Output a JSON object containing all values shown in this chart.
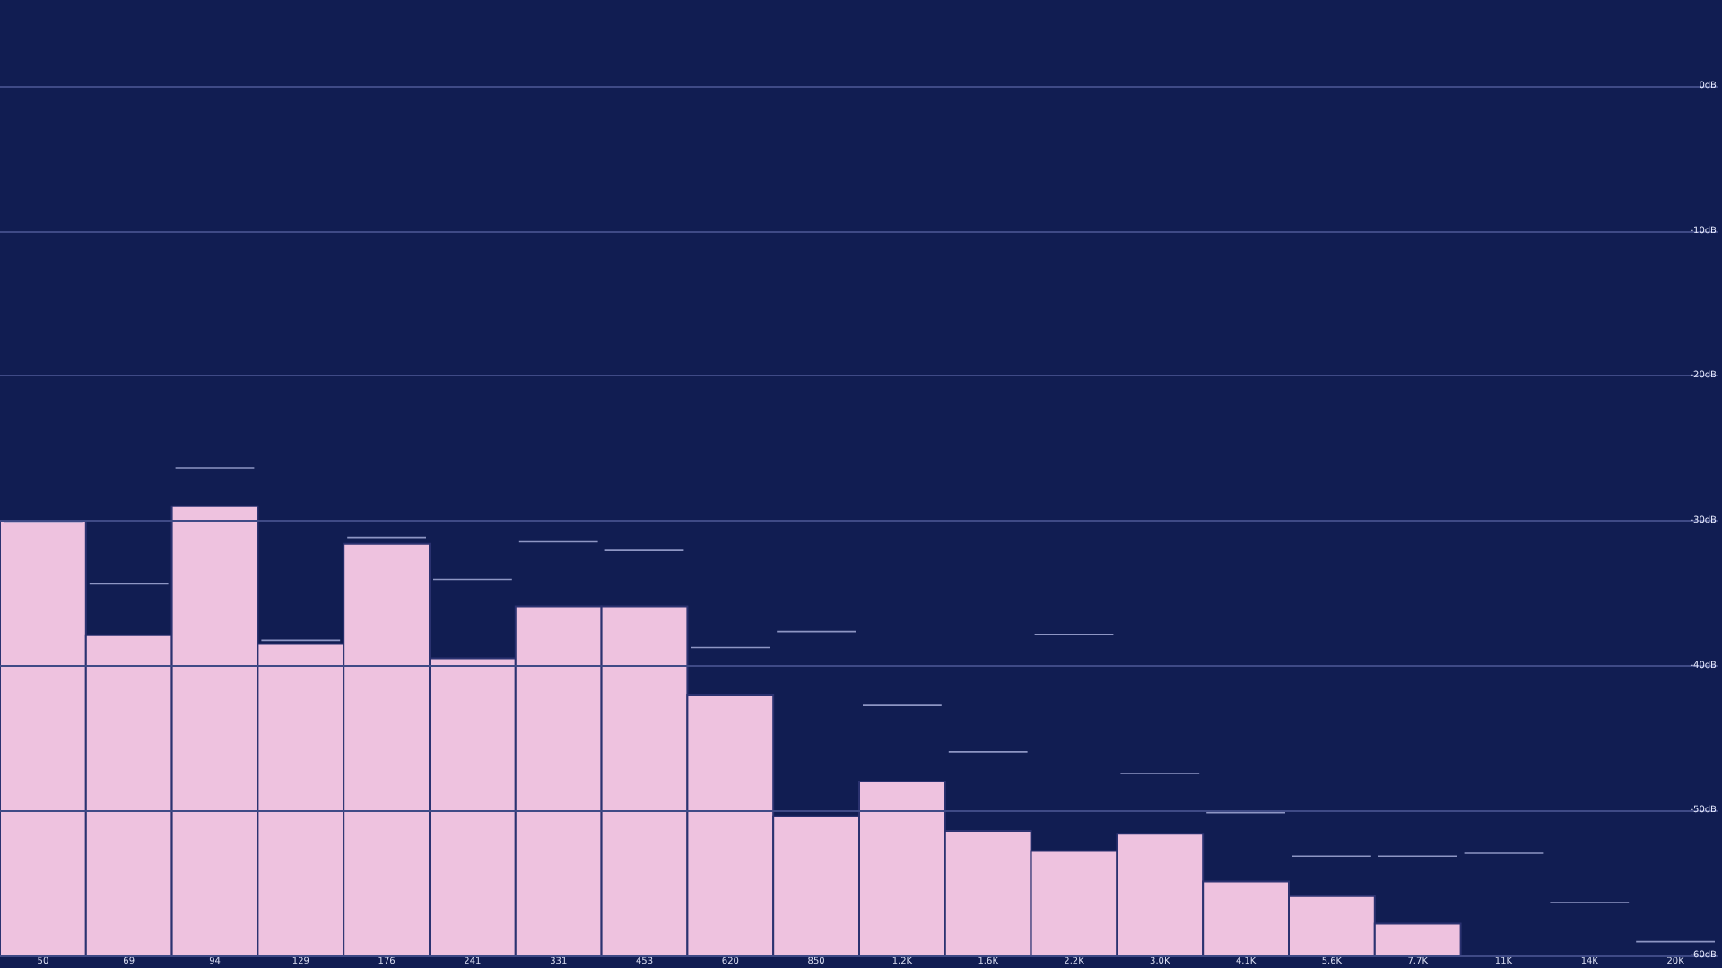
{
  "chart_data": {
    "type": "bar",
    "categories": [
      "50",
      "69",
      "94",
      "129",
      "176",
      "241",
      "331",
      "453",
      "620",
      "850",
      "1.2K",
      "1.6K",
      "2.2K",
      "3.0K",
      "4.1K",
      "5.6K",
      "7.7K",
      "11K",
      "14K",
      "20K"
    ],
    "series": [
      {
        "color": "#eec2df",
        "base": [
          -60,
          -60,
          -60,
          -60,
          -60,
          -60,
          -60,
          -60,
          -60,
          -60,
          -60,
          -60,
          -60,
          -60,
          -60,
          -60,
          -60,
          null,
          null,
          null
        ],
        "values": [
          30,
          22.1,
          31,
          21.5,
          28.4,
          20.5,
          24.1,
          24.1,
          18,
          9.6,
          12,
          8.6,
          7.2,
          8.4,
          5.1,
          4.1,
          2.2,
          null,
          null,
          null
        ]
      },
      {
        "type": "bar",
        "color": "#8e96c4",
        "base": [
          -30.1,
          -34.4,
          -26.4,
          -38.3,
          -31.2,
          -34.1,
          -31.5,
          -32.1,
          -38.8,
          -37.7,
          -42.8,
          -46,
          -37.9,
          -47.5,
          -50.2,
          -53.2,
          -53.2,
          -53,
          -56.4,
          -59.1
        ],
        "values": [
          0.1,
          0.1,
          0.1,
          0.1,
          0.1,
          0.1,
          0.1,
          0.1,
          0.1,
          0.1,
          0.1,
          0.1,
          0.1,
          0.1,
          0.1,
          0.1,
          0.1,
          0.1,
          0.1,
          0.1
        ]
      }
    ],
    "ylim": [
      -60,
      0
    ],
    "yticks": [
      {
        "value": 0,
        "label": "0dB"
      },
      {
        "value": -10,
        "label": "-10dB"
      },
      {
        "value": -20,
        "label": "-20dB"
      },
      {
        "value": -30,
        "label": "-30dB"
      },
      {
        "value": -40,
        "label": "-40dB"
      },
      {
        "value": -50,
        "label": "-50dB"
      },
      {
        "value": -60,
        "label": "-60dB"
      }
    ],
    "grid": "y"
  }
}
